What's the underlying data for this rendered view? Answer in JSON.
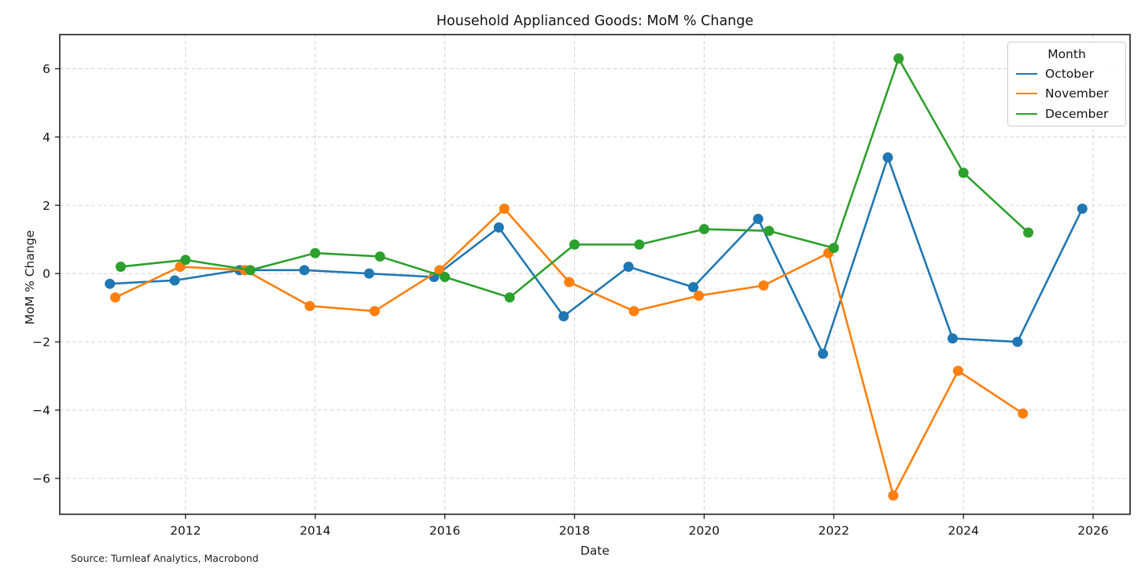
{
  "chart_data": {
    "type": "line",
    "title": "Household Applianced Goods: MoM % Change",
    "xlabel": "Date",
    "ylabel": "MoM % Change",
    "source_note": "Source: Turnleaf Analytics, Macrobond",
    "grid": true,
    "xlim": [
      2010.06,
      2026.57
    ],
    "ylim": [
      -7.05,
      7.0
    ],
    "x_ticks": [
      2012,
      2014,
      2016,
      2018,
      2020,
      2022,
      2024,
      2026
    ],
    "x_tick_labels": [
      "2012",
      "2014",
      "2016",
      "2018",
      "2020",
      "2022",
      "2024",
      "2026"
    ],
    "y_ticks": [
      6,
      4,
      2,
      0,
      -2,
      -4,
      -6
    ],
    "y_tick_labels": [
      "6",
      "4",
      "2",
      "0",
      "−2",
      "−4",
      "−6"
    ],
    "legend": {
      "title": "Month",
      "position": "upper right"
    },
    "categories_years": [
      2010,
      2011,
      2012,
      2013,
      2014,
      2015,
      2016,
      2017,
      2018,
      2019,
      2020,
      2021,
      2022,
      2023,
      2024,
      2025
    ],
    "series": [
      {
        "name": "October",
        "color": "#1f77b4",
        "x_offset_years": 0.833,
        "values": [
          -0.3,
          -0.2,
          0.1,
          0.1,
          0.0,
          -0.1,
          1.35,
          -1.25,
          0.2,
          -0.4,
          1.6,
          -2.35,
          3.4,
          -1.9,
          -2.0,
          1.9
        ]
      },
      {
        "name": "November",
        "color": "#ff7f0e",
        "x_offset_years": 0.917,
        "values": [
          -0.7,
          0.2,
          0.1,
          -0.95,
          -1.1,
          0.1,
          1.9,
          -0.25,
          -1.1,
          -0.65,
          -0.35,
          0.6,
          -6.5,
          -2.85,
          -4.1,
          null
        ]
      },
      {
        "name": "December",
        "color": "#2ca02c",
        "x_offset_years": 1.0,
        "values": [
          0.2,
          0.4,
          0.1,
          0.6,
          0.5,
          -0.1,
          -0.7,
          0.85,
          0.85,
          1.3,
          1.25,
          0.75,
          6.3,
          2.95,
          1.2,
          null
        ]
      }
    ],
    "style": {
      "grid_color": "#d4d4d4",
      "spine_color": "#1c1c1c",
      "background": "#ffffff"
    }
  }
}
